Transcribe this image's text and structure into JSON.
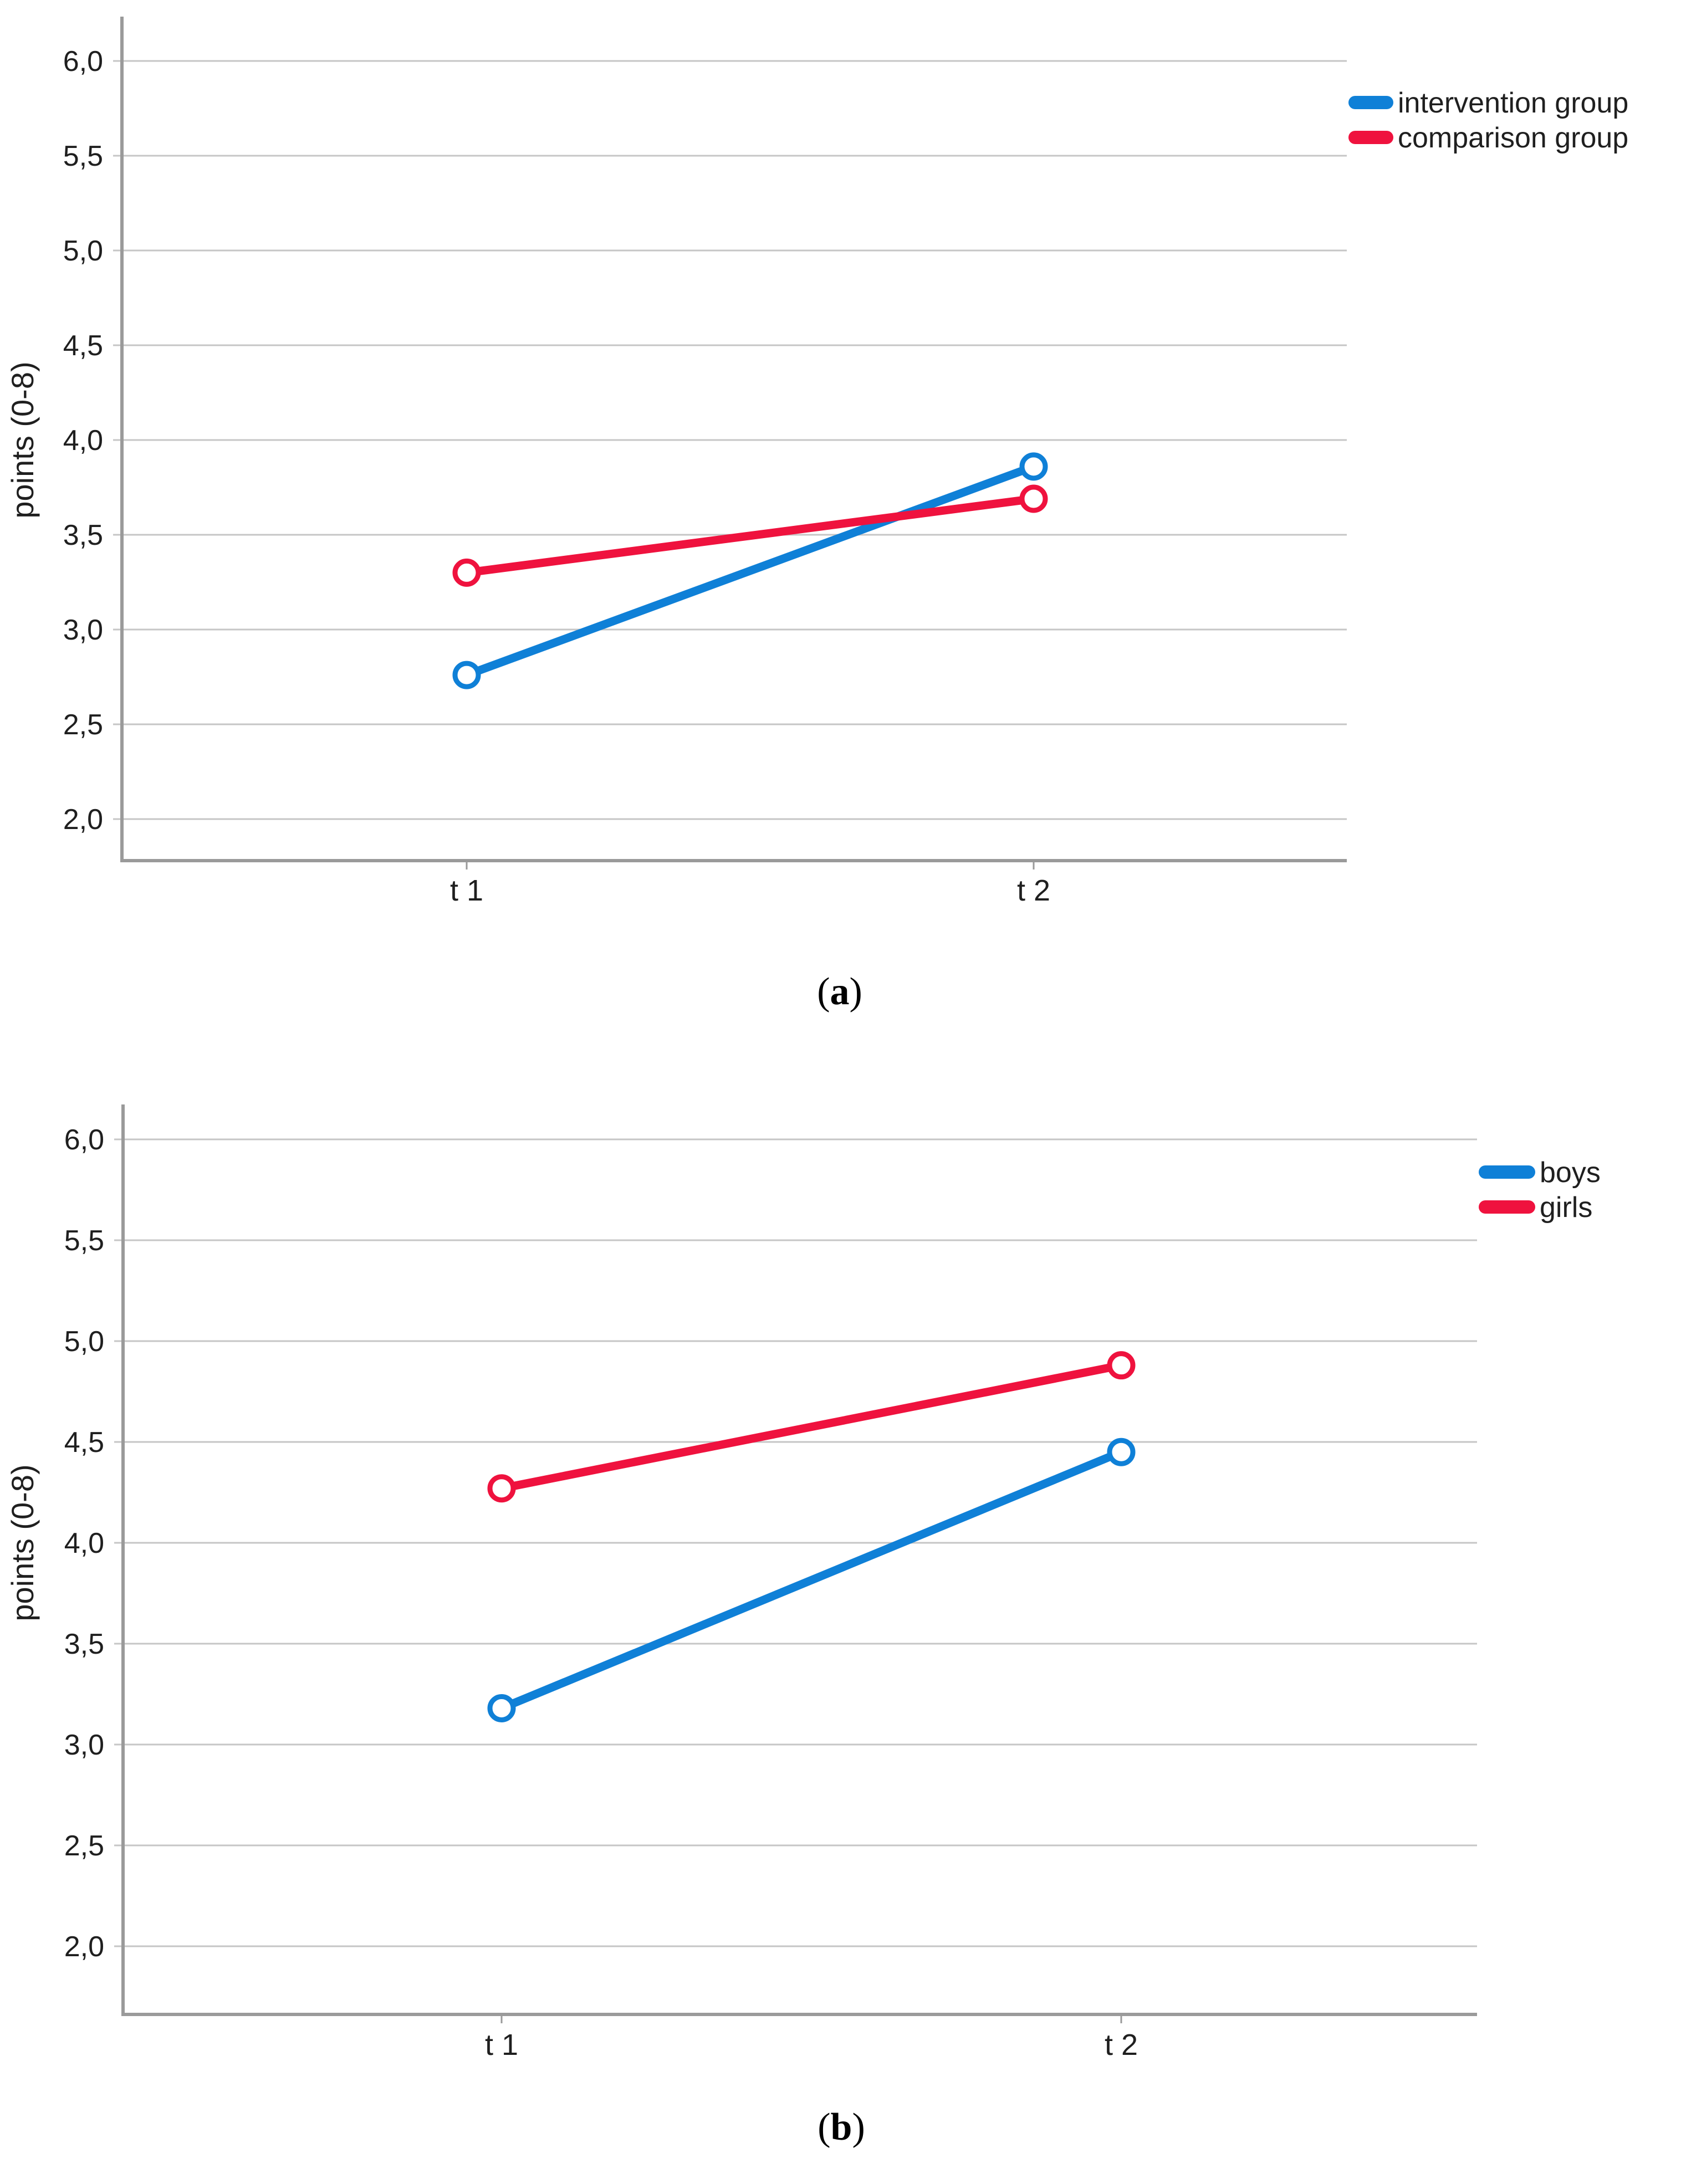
{
  "chart_data": [
    {
      "panel": "a",
      "type": "line",
      "categories": [
        "t 1",
        "t 2"
      ],
      "series": [
        {
          "name": "intervention group",
          "color": "#0f80d7",
          "values": [
            2.76,
            3.86
          ]
        },
        {
          "name": "comparison group",
          "color": "#ef123e",
          "values": [
            3.3,
            3.69
          ]
        }
      ],
      "ylabel": "points (0-8)",
      "y_tick_values": [
        6.0,
        5.5,
        5.0,
        4.5,
        4.0,
        3.5,
        3.0,
        2.5,
        2.0
      ],
      "y_tick_labels": [
        "6,0",
        "5,5",
        "5,0",
        "4,5",
        "4,0",
        "3,5",
        "3,0",
        "2,5",
        "2,0"
      ],
      "ylim": [
        1.8,
        6.2
      ],
      "grid": "horizontal",
      "legend_position": "right",
      "marker": "open-circle",
      "caption_open": "(",
      "caption_letter": "a",
      "caption_close": ")"
    },
    {
      "panel": "b",
      "type": "line",
      "categories": [
        "t 1",
        "t 2"
      ],
      "series": [
        {
          "name": "boys",
          "color": "#0f80d7",
          "values": [
            3.18,
            4.45
          ]
        },
        {
          "name": "girls",
          "color": "#ef123e",
          "values": [
            4.27,
            4.88
          ]
        }
      ],
      "ylabel": "points (0-8)",
      "y_tick_values": [
        6.0,
        5.5,
        5.0,
        4.5,
        4.0,
        3.5,
        3.0,
        2.5,
        2.0
      ],
      "y_tick_labels": [
        "6,0",
        "5,5",
        "5,0",
        "4,5",
        "4,0",
        "3,5",
        "3,0",
        "2,5",
        "2,0"
      ],
      "ylim": [
        1.7,
        6.2
      ],
      "grid": "horizontal",
      "legend_position": "right",
      "marker": "open-circle",
      "caption_open": "(",
      "caption_letter": "b",
      "caption_close": ")"
    }
  ]
}
